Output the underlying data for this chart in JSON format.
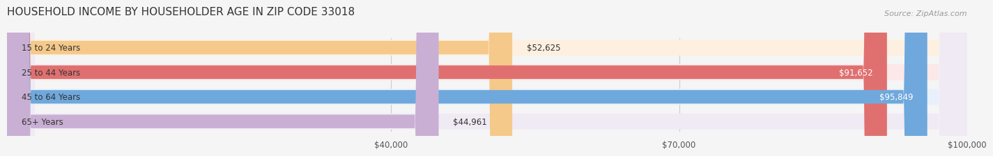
{
  "title": "HOUSEHOLD INCOME BY HOUSEHOLDER AGE IN ZIP CODE 33018",
  "source": "Source: ZipAtlas.com",
  "categories": [
    "15 to 24 Years",
    "25 to 44 Years",
    "45 to 64 Years",
    "65+ Years"
  ],
  "values": [
    52625,
    91652,
    95849,
    44961
  ],
  "bar_colors": [
    "#f5c98a",
    "#e07070",
    "#6fa8dc",
    "#c9afd4"
  ],
  "bg_colors": [
    "#fdf0e0",
    "#fce8e8",
    "#e8f0fc",
    "#f0eaf5"
  ],
  "value_labels": [
    "$52,625",
    "$91,652",
    "$95,849",
    "$44,961"
  ],
  "xmin": 0,
  "xmax": 100000,
  "xticks": [
    40000,
    70000,
    100000
  ],
  "xtick_labels": [
    "$40,000",
    "$70,000",
    "$100,000"
  ],
  "title_fontsize": 11,
  "source_fontsize": 8,
  "label_fontsize": 8.5,
  "value_fontsize": 8.5,
  "tick_fontsize": 8.5
}
